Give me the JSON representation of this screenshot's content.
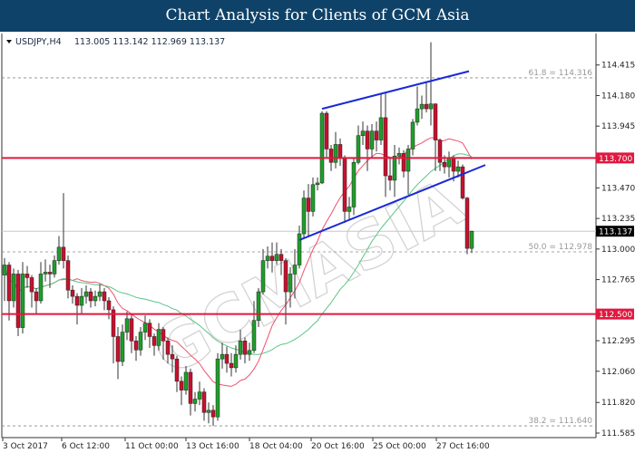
{
  "header": {
    "title": "Chart Analysis for Clients of GCM Asia"
  },
  "watermark": "GCMASIA",
  "chart_data": {
    "type": "candlestick",
    "symbol_info": "USDJPY,H4",
    "ohlc_info": "113.005 113.142 112.969 113.137",
    "y_range": [
      111.55,
      114.65
    ],
    "y_ticks": [
      "114.415",
      "114.180",
      "113.945",
      "113.470",
      "113.235",
      "113.000",
      "112.765",
      "112.295",
      "112.060",
      "111.820",
      "111.585"
    ],
    "x_ticks": [
      {
        "bar": 0,
        "label": "3 Oct 2017"
      },
      {
        "bar": 13,
        "label": "6 Oct 12:00"
      },
      {
        "bar": 27,
        "label": "11 Oct 00:00"
      },
      {
        "bar": 40.4,
        "label": "13 Oct 16:00"
      },
      {
        "bar": 54.4,
        "label": "18 Oct 04:00"
      },
      {
        "bar": 68,
        "label": "20 Oct 16:00"
      },
      {
        "bar": 81.6,
        "label": "25 Oct 00:00"
      },
      {
        "bar": 95.6,
        "label": "27 Oct 16:00"
      }
    ],
    "colors": {
      "up": "#1f9e2a",
      "down": "#c8102e",
      "wick": "#333333",
      "level": "#e0183f",
      "channel": "#1a2ad6",
      "fib": "#888888",
      "current": "#c8c8c8"
    },
    "candles": [
      [
        112.8,
        112.93,
        112.6,
        112.877
      ],
      [
        112.877,
        112.9,
        112.45,
        112.602
      ],
      [
        112.602,
        112.85,
        112.55,
        112.808
      ],
      [
        112.808,
        112.84,
        112.33,
        112.396
      ],
      [
        112.396,
        112.9,
        112.35,
        112.808
      ],
      [
        112.808,
        112.87,
        112.7,
        112.78
      ],
      [
        112.78,
        112.8,
        112.55,
        112.671
      ],
      [
        112.671,
        112.7,
        112.5,
        112.602
      ],
      [
        112.602,
        112.9,
        112.58,
        112.808
      ],
      [
        112.808,
        112.92,
        112.75,
        112.822
      ],
      [
        112.822,
        112.88,
        112.7,
        112.808
      ],
      [
        112.808,
        112.95,
        112.78,
        112.911
      ],
      [
        112.911,
        113.1,
        112.88,
        113.014
      ],
      [
        113.014,
        113.43,
        112.85,
        112.911
      ],
      [
        112.911,
        112.95,
        112.62,
        112.684
      ],
      [
        112.684,
        112.72,
        112.58,
        112.636
      ],
      [
        112.636,
        112.66,
        112.42,
        112.567
      ],
      [
        112.567,
        112.7,
        112.5,
        112.636
      ],
      [
        112.636,
        112.72,
        112.58,
        112.671
      ],
      [
        112.671,
        112.7,
        112.55,
        112.602
      ],
      [
        112.602,
        112.68,
        112.56,
        112.636
      ],
      [
        112.636,
        112.73,
        112.6,
        112.671
      ],
      [
        112.671,
        112.7,
        112.53,
        112.602
      ],
      [
        112.602,
        112.63,
        112.46,
        112.533
      ],
      [
        112.533,
        112.56,
        112.12,
        112.327
      ],
      [
        112.327,
        112.4,
        112.0,
        112.135
      ],
      [
        112.135,
        112.42,
        112.1,
        112.361
      ],
      [
        112.361,
        112.52,
        112.3,
        112.464
      ],
      [
        112.464,
        112.5,
        112.2,
        112.293
      ],
      [
        112.293,
        112.33,
        112.14,
        112.224
      ],
      [
        112.224,
        112.4,
        112.18,
        112.361
      ],
      [
        112.361,
        112.49,
        112.3,
        112.43
      ],
      [
        112.43,
        112.46,
        112.24,
        112.327
      ],
      [
        112.327,
        112.35,
        112.18,
        112.258
      ],
      [
        112.258,
        112.43,
        112.22,
        112.382
      ],
      [
        112.382,
        112.4,
        112.15,
        112.293
      ],
      [
        112.293,
        112.32,
        112.12,
        112.19
      ],
      [
        112.19,
        112.26,
        112.05,
        112.155
      ],
      [
        112.155,
        112.18,
        111.9,
        111.983
      ],
      [
        111.983,
        112.02,
        111.8,
        111.915
      ],
      [
        111.915,
        112.1,
        111.88,
        112.052
      ],
      [
        112.052,
        112.08,
        111.72,
        111.812
      ],
      [
        111.812,
        111.9,
        111.75,
        111.846
      ],
      [
        111.846,
        111.98,
        111.8,
        111.901
      ],
      [
        111.901,
        111.93,
        111.68,
        111.743
      ],
      [
        111.743,
        111.82,
        111.66,
        111.76
      ],
      [
        111.76,
        111.8,
        111.64,
        111.709
      ],
      [
        111.709,
        112.2,
        111.68,
        112.155
      ],
      [
        112.155,
        112.28,
        112.08,
        112.19
      ],
      [
        112.19,
        112.25,
        112.05,
        112.121
      ],
      [
        112.121,
        112.2,
        112.02,
        112.087
      ],
      [
        112.087,
        112.26,
        112.05,
        112.19
      ],
      [
        112.19,
        112.38,
        112.15,
        112.293
      ],
      [
        112.293,
        112.32,
        112.12,
        112.19
      ],
      [
        112.19,
        112.28,
        112.14,
        112.22
      ],
      [
        112.22,
        112.6,
        112.2,
        112.451
      ],
      [
        112.451,
        112.7,
        112.4,
        112.671
      ],
      [
        112.671,
        113.0,
        112.65,
        112.911
      ],
      [
        112.911,
        113.02,
        112.85,
        112.945
      ],
      [
        112.945,
        113.05,
        112.82,
        112.911
      ],
      [
        112.911,
        113.05,
        112.88,
        112.959
      ],
      [
        112.959,
        113.0,
        112.8,
        112.911
      ],
      [
        112.911,
        112.93,
        112.42,
        112.671
      ],
      [
        112.671,
        112.86,
        112.55,
        112.808
      ],
      [
        112.808,
        113.0,
        112.62,
        112.877
      ],
      [
        112.877,
        113.18,
        112.85,
        113.117
      ],
      [
        113.117,
        113.45,
        113.08,
        113.392
      ],
      [
        113.392,
        113.5,
        113.1,
        113.289
      ],
      [
        113.289,
        113.55,
        113.25,
        113.495
      ],
      [
        113.495,
        113.55,
        113.45,
        113.508
      ],
      [
        113.508,
        114.06,
        113.5,
        114.044
      ],
      [
        114.044,
        114.06,
        113.7,
        113.769
      ],
      [
        113.769,
        113.8,
        113.6,
        113.666
      ],
      [
        113.666,
        113.9,
        113.62,
        113.804
      ],
      [
        113.804,
        113.85,
        113.64,
        113.701
      ],
      [
        113.701,
        113.72,
        113.2,
        113.289
      ],
      [
        113.289,
        113.4,
        113.22,
        113.323
      ],
      [
        113.323,
        113.7,
        113.26,
        113.666
      ],
      [
        113.666,
        113.95,
        113.65,
        113.872
      ],
      [
        113.872,
        113.98,
        113.8,
        113.907
      ],
      [
        113.907,
        113.95,
        113.6,
        113.769
      ],
      [
        113.769,
        113.96,
        113.7,
        113.907
      ],
      [
        113.907,
        113.98,
        113.75,
        113.838
      ],
      [
        113.838,
        114.2,
        113.8,
        114.01
      ],
      [
        114.01,
        114.2,
        113.4,
        113.563
      ],
      [
        113.563,
        113.7,
        113.45,
        113.529
      ],
      [
        113.529,
        113.8,
        113.4,
        113.715
      ],
      [
        113.715,
        113.78,
        113.65,
        113.735
      ],
      [
        113.735,
        113.76,
        113.55,
        113.598
      ],
      [
        113.598,
        113.8,
        113.42,
        113.769
      ],
      [
        113.769,
        114.0,
        113.72,
        113.975
      ],
      [
        113.975,
        114.25,
        113.95,
        114.078
      ],
      [
        114.078,
        114.18,
        114.0,
        114.113
      ],
      [
        114.113,
        114.28,
        114.05,
        114.078
      ],
      [
        114.078,
        114.59,
        113.95,
        114.116
      ],
      [
        114.116,
        114.12,
        113.6,
        113.838
      ],
      [
        113.838,
        113.85,
        113.6,
        113.666
      ],
      [
        113.666,
        113.72,
        113.58,
        113.632
      ],
      [
        113.632,
        113.75,
        113.55,
        113.701
      ],
      [
        113.701,
        113.72,
        113.52,
        113.598
      ],
      [
        113.598,
        113.68,
        113.55,
        113.632
      ],
      [
        113.632,
        113.65,
        113.38,
        113.392
      ],
      [
        113.392,
        113.4,
        112.96,
        113.005
      ],
      [
        113.005,
        113.142,
        112.969,
        113.137
      ]
    ],
    "moving_averages": [
      {
        "period": 13,
        "color": "#f0506e"
      },
      {
        "period": 35,
        "color": "#5cc585"
      }
    ],
    "levels": [
      {
        "price": 113.7,
        "label": "113.700"
      },
      {
        "price": 112.5,
        "label": "112.500"
      }
    ],
    "current_price": {
      "price": 113.137,
      "label": "113.137"
    },
    "fibonacci": [
      {
        "price": 114.316,
        "label": "61.8 = 114.316"
      },
      {
        "price": 112.978,
        "label": "50.0 = 112.978"
      },
      {
        "price": 111.64,
        "label": "38.2 = 111.640"
      }
    ],
    "channel": [
      {
        "from": {
          "bar": 70,
          "price": 114.078
        },
        "to": {
          "bar": 102.4,
          "price": 114.367
        }
      },
      {
        "from": {
          "bar": 65,
          "price": 113.069
        },
        "to": {
          "bar": 106,
          "price": 113.646
        }
      }
    ]
  }
}
